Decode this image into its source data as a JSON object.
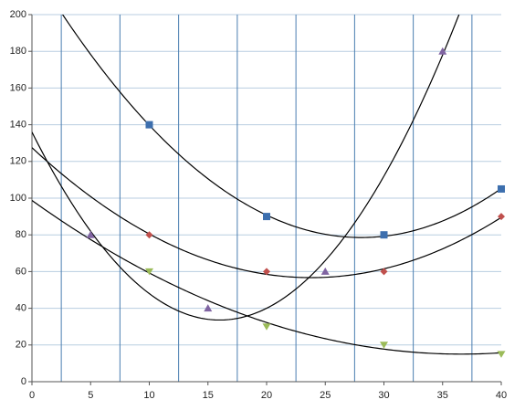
{
  "chart_data": {
    "type": "scatter",
    "trendline": "poly2",
    "xlim": [
      0,
      40
    ],
    "xticks": [
      0,
      5,
      10,
      15,
      20,
      25,
      30,
      35,
      40
    ],
    "ylim": [
      0,
      200
    ],
    "yticks": [
      0,
      20,
      40,
      60,
      80,
      100,
      120,
      140,
      160,
      180,
      200
    ],
    "grid": true,
    "x_gridlines": [
      2.5,
      7.5,
      12.5,
      17.5,
      22.5,
      27.5,
      32.5,
      37.5
    ],
    "series": [
      {
        "marker": "square",
        "color": "#3d6fae",
        "x": [
          10,
          20,
          30,
          40
        ],
        "values": [
          140,
          90,
          80,
          105
        ]
      },
      {
        "marker": "diamond",
        "color": "#c0504d",
        "x": [
          10,
          20,
          30,
          40
        ],
        "values": [
          80,
          60,
          60,
          90
        ]
      },
      {
        "marker": "triangle-down",
        "color": "#9bbb59",
        "x": [
          10,
          20,
          30,
          40
        ],
        "values": [
          60,
          30,
          20,
          15
        ]
      },
      {
        "marker": "triangle-up",
        "color": "#8064a2",
        "x": [
          5,
          15,
          25,
          35
        ],
        "values": [
          80,
          40,
          60,
          180
        ]
      }
    ]
  }
}
